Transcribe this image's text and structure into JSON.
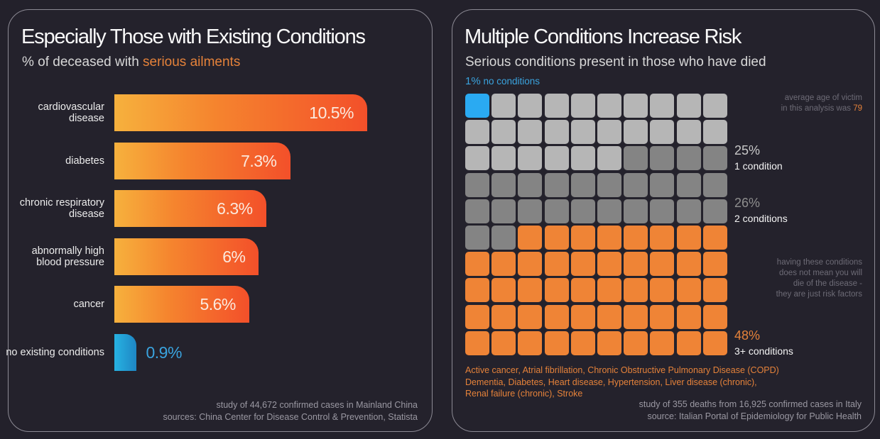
{
  "colors": {
    "background": "#23212b",
    "orange": "#ef8436",
    "blue": "#2aaaf2",
    "light_grey": "#b6b6b6",
    "dark_grey": "#848484"
  },
  "left": {
    "title": "Especially Those with Existing Conditions",
    "subtitle_prefix": "% of deceased with ",
    "subtitle_accent": "serious ailments",
    "footnote_line1": "study of 44,672 confirmed cases in Mainland China",
    "footnote_line2": "sources: China Center for Disease Control & Prevention, Statista"
  },
  "right": {
    "title": "Multiple Conditions Increase Risk",
    "subtitle": "Serious conditions present in those who have died",
    "no_conditions_pct": "1%",
    "no_conditions_label": " no conditions",
    "age_note_line1": "average age of victim",
    "age_note_line2_prefix": "in this analysis was ",
    "age_value": "79",
    "one_condition_pct": "25%",
    "one_condition_label": "1 condition",
    "two_conditions_pct": "26%",
    "two_conditions_label": "2 conditions",
    "risk_note": [
      "having these conditions",
      "does not mean you will",
      "die of the disease -",
      "they are just risk factors"
    ],
    "three_plus_pct": "48%",
    "three_plus_label": "3+ conditions",
    "conditions_list": [
      "Active cancer, Atrial fibrillation, Chronic Obstructive Pulmonary Disease (COPD)",
      "Dementia, Diabetes, Heart disease, Hypertension, Liver disease (chronic),",
      "Renal failure (chronic), Stroke"
    ],
    "footnote_line1": "study of 355 deaths from 16,925 confirmed cases in Italy",
    "footnote_line2": "source: Italian Portal of Epidemiology for Public Health"
  },
  "chart_data": [
    {
      "type": "bar",
      "orientation": "horizontal",
      "title": "Especially Those with Existing Conditions",
      "subtitle": "% of deceased with serious ailments",
      "categories": [
        "cardiovascular disease",
        "diabetes",
        "chronic respiratory disease",
        "abnormally high blood pressure",
        "cancer",
        "no existing conditions"
      ],
      "values": [
        10.5,
        7.3,
        6.3,
        6,
        5.6,
        0.9
      ],
      "labels": [
        "10.5%",
        "7.3%",
        "6.3%",
        "6%",
        "5.6%",
        "0.9%"
      ],
      "highlight": [
        false,
        false,
        false,
        false,
        false,
        true
      ],
      "xlabel": "",
      "ylabel": "",
      "xlim": [
        0,
        10.5
      ]
    },
    {
      "type": "heatmap",
      "subtype": "waffle",
      "title": "Multiple Conditions Increase Risk",
      "subtitle": "Serious conditions present in those who have died",
      "grid": [
        10,
        10
      ],
      "series": [
        {
          "name": "no conditions",
          "value": 1,
          "color": "blue"
        },
        {
          "name": "1 condition",
          "value": 25,
          "color": "light_grey"
        },
        {
          "name": "2 conditions",
          "value": 26,
          "color": "dark_grey"
        },
        {
          "name": "3+ conditions",
          "value": 48,
          "color": "orange"
        }
      ]
    }
  ]
}
